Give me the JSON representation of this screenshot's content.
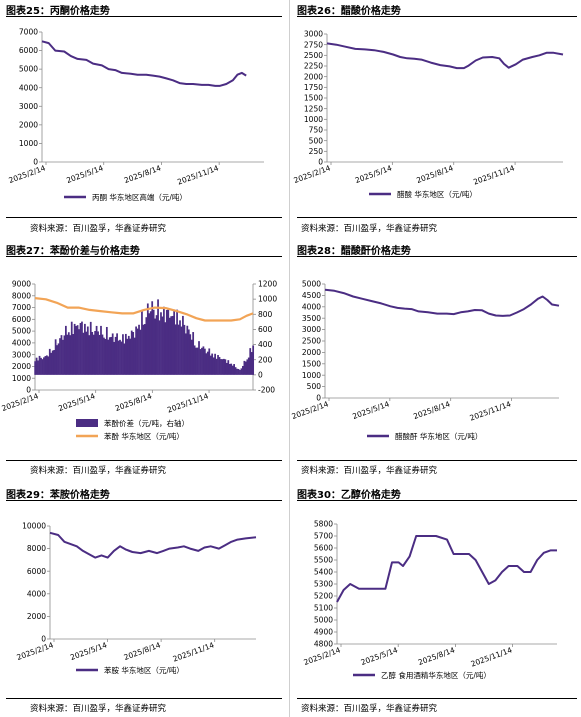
{
  "colors": {
    "purple": "#4b2d83",
    "orange": "#f2a456",
    "axis": "#8c8c8c"
  },
  "source_text": "资料来源：百川盈孚，华鑫证券研究",
  "chart_data": [
    {
      "id": "c25",
      "type": "line",
      "title": "图表25：丙酮价格走势",
      "ylim": [
        0,
        7000
      ],
      "yticks": [
        0,
        1000,
        2000,
        3000,
        4000,
        5000,
        6000,
        7000
      ],
      "xlabels": [
        "2025/2/14",
        "2025/5/14",
        "2025/8/14",
        "2025/11/14"
      ],
      "series": [
        {
          "name": "丙酮  华东地区高端（元/吨）",
          "color": "#4b2d83",
          "points": [
            [
              0,
              6500
            ],
            [
              0.03,
              6400
            ],
            [
              0.06,
              6000
            ],
            [
              0.1,
              5950
            ],
            [
              0.13,
              5700
            ],
            [
              0.16,
              5550
            ],
            [
              0.2,
              5500
            ],
            [
              0.23,
              5300
            ],
            [
              0.27,
              5200
            ],
            [
              0.3,
              5000
            ],
            [
              0.33,
              4950
            ],
            [
              0.36,
              4800
            ],
            [
              0.4,
              4750
            ],
            [
              0.43,
              4700
            ],
            [
              0.47,
              4700
            ],
            [
              0.5,
              4650
            ],
            [
              0.53,
              4600
            ],
            [
              0.56,
              4500
            ],
            [
              0.59,
              4400
            ],
            [
              0.62,
              4250
            ],
            [
              0.65,
              4200
            ],
            [
              0.68,
              4200
            ],
            [
              0.72,
              4150
            ],
            [
              0.75,
              4150
            ],
            [
              0.78,
              4100
            ],
            [
              0.8,
              4100
            ],
            [
              0.83,
              4200
            ],
            [
              0.86,
              4400
            ],
            [
              0.88,
              4700
            ],
            [
              0.9,
              4800
            ],
            [
              0.92,
              4650
            ]
          ]
        }
      ]
    },
    {
      "id": "c26",
      "type": "line",
      "title": "图表26：醋酸价格走势",
      "ylim": [
        0,
        3000
      ],
      "yticks": [
        0,
        250,
        500,
        750,
        1000,
        1250,
        1500,
        1750,
        2000,
        2250,
        2500,
        2750,
        3000
      ],
      "xlabels": [
        "2025/2/14",
        "2025/5/14",
        "2025/8/14",
        "2025/11/14"
      ],
      "series": [
        {
          "name": "醋酸  华东地区（元/吨）",
          "color": "#4b2d83",
          "points": [
            [
              0,
              2780
            ],
            [
              0.04,
              2750
            ],
            [
              0.08,
              2700
            ],
            [
              0.12,
              2650
            ],
            [
              0.16,
              2640
            ],
            [
              0.2,
              2620
            ],
            [
              0.24,
              2580
            ],
            [
              0.28,
              2520
            ],
            [
              0.31,
              2460
            ],
            [
              0.34,
              2430
            ],
            [
              0.37,
              2420
            ],
            [
              0.4,
              2400
            ],
            [
              0.44,
              2330
            ],
            [
              0.48,
              2270
            ],
            [
              0.52,
              2240
            ],
            [
              0.55,
              2200
            ],
            [
              0.58,
              2200
            ],
            [
              0.6,
              2260
            ],
            [
              0.63,
              2380
            ],
            [
              0.66,
              2450
            ],
            [
              0.7,
              2460
            ],
            [
              0.73,
              2430
            ],
            [
              0.75,
              2300
            ],
            [
              0.77,
              2210
            ],
            [
              0.8,
              2290
            ],
            [
              0.83,
              2400
            ],
            [
              0.87,
              2460
            ],
            [
              0.9,
              2500
            ],
            [
              0.93,
              2560
            ],
            [
              0.96,
              2560
            ],
            [
              1.0,
              2520
            ]
          ]
        }
      ]
    },
    {
      "id": "c27",
      "type": "bar",
      "title": "图表27：苯酚价差与价格走势",
      "ylim": [
        0,
        9000
      ],
      "yticks": [
        0,
        1000,
        2000,
        3000,
        4000,
        5000,
        6000,
        7000,
        8000,
        9000
      ],
      "ylim_right": [
        -200,
        1200
      ],
      "yticks_right": [
        -200,
        0,
        200,
        400,
        600,
        800,
        1000,
        1200
      ],
      "xlabels": [
        "2025/2/14",
        "2025/5/14",
        "2025/8/14",
        "2025/11/14"
      ],
      "series": [
        {
          "name": "苯酚价差（元/吨，右轴）",
          "color": "#4b2d83",
          "axis": "right",
          "points": [
            [
              0,
              250
            ],
            [
              0.05,
              280
            ],
            [
              0.1,
              500
            ],
            [
              0.15,
              700
            ],
            [
              0.2,
              780
            ],
            [
              0.25,
              720
            ],
            [
              0.3,
              680
            ],
            [
              0.35,
              600
            ],
            [
              0.4,
              560
            ],
            [
              0.45,
              640
            ],
            [
              0.5,
              900
            ],
            [
              0.53,
              1050
            ],
            [
              0.56,
              1010
            ],
            [
              0.6,
              960
            ],
            [
              0.65,
              920
            ],
            [
              0.7,
              720
            ],
            [
              0.74,
              480
            ],
            [
              0.78,
              400
            ],
            [
              0.82,
              310
            ],
            [
              0.86,
              250
            ],
            [
              0.9,
              180
            ],
            [
              0.94,
              70
            ],
            [
              0.97,
              250
            ],
            [
              1.0,
              450
            ]
          ]
        },
        {
          "name": "苯酚  华东地区（元/吨）",
          "color": "#f2a456",
          "axis": "left",
          "points": [
            [
              0,
              7800
            ],
            [
              0.05,
              7700
            ],
            [
              0.1,
              7400
            ],
            [
              0.15,
              7000
            ],
            [
              0.2,
              7000
            ],
            [
              0.25,
              6800
            ],
            [
              0.3,
              6700
            ],
            [
              0.35,
              6600
            ],
            [
              0.4,
              6500
            ],
            [
              0.45,
              6500
            ],
            [
              0.5,
              6800
            ],
            [
              0.55,
              7000
            ],
            [
              0.6,
              6950
            ],
            [
              0.65,
              6700
            ],
            [
              0.7,
              6400
            ],
            [
              0.74,
              6100
            ],
            [
              0.78,
              5900
            ],
            [
              0.82,
              5900
            ],
            [
              0.86,
              5900
            ],
            [
              0.9,
              5900
            ],
            [
              0.94,
              6000
            ],
            [
              0.97,
              6300
            ],
            [
              1.0,
              6500
            ]
          ]
        }
      ]
    },
    {
      "id": "c28",
      "type": "line",
      "title": "图表28：醋酸酐价格走势",
      "ylim": [
        0,
        5000
      ],
      "yticks": [
        0,
        500,
        1000,
        1500,
        2000,
        2500,
        3000,
        3500,
        4000,
        4500,
        5000
      ],
      "xlabels": [
        "2025/2/14",
        "2025/5/14",
        "2025/8/14",
        "2025/11/14"
      ],
      "series": [
        {
          "name": "醋酸酐  华东地区（元/吨）",
          "color": "#4b2d83",
          "points": [
            [
              0,
              4750
            ],
            [
              0.04,
              4700
            ],
            [
              0.08,
              4600
            ],
            [
              0.12,
              4450
            ],
            [
              0.16,
              4350
            ],
            [
              0.2,
              4250
            ],
            [
              0.24,
              4150
            ],
            [
              0.28,
              4020
            ],
            [
              0.31,
              3950
            ],
            [
              0.34,
              3920
            ],
            [
              0.37,
              3900
            ],
            [
              0.4,
              3800
            ],
            [
              0.44,
              3760
            ],
            [
              0.48,
              3700
            ],
            [
              0.52,
              3700
            ],
            [
              0.55,
              3680
            ],
            [
              0.58,
              3760
            ],
            [
              0.61,
              3800
            ],
            [
              0.64,
              3860
            ],
            [
              0.67,
              3850
            ],
            [
              0.7,
              3700
            ],
            [
              0.73,
              3620
            ],
            [
              0.76,
              3600
            ],
            [
              0.79,
              3620
            ],
            [
              0.82,
              3750
            ],
            [
              0.85,
              3900
            ],
            [
              0.88,
              4100
            ],
            [
              0.91,
              4350
            ],
            [
              0.93,
              4450
            ],
            [
              0.95,
              4300
            ],
            [
              0.97,
              4100
            ],
            [
              1.0,
              4050
            ]
          ]
        }
      ]
    },
    {
      "id": "c29",
      "type": "line",
      "title": "图表29：苯胺价格走势",
      "ylim": [
        0,
        10000
      ],
      "yticks": [
        0,
        2000,
        4000,
        6000,
        8000,
        10000
      ],
      "xlabels": [
        "2025/2/14",
        "2025/5/14",
        "2025/8/14",
        "2025/11/14"
      ],
      "series": [
        {
          "name": "苯胺  华东地区（元/吨）",
          "color": "#4b2d83",
          "points": [
            [
              0,
              9400
            ],
            [
              0.04,
              9200
            ],
            [
              0.07,
              8600
            ],
            [
              0.1,
              8400
            ],
            [
              0.13,
              8200
            ],
            [
              0.16,
              7800
            ],
            [
              0.19,
              7500
            ],
            [
              0.22,
              7200
            ],
            [
              0.25,
              7400
            ],
            [
              0.28,
              7200
            ],
            [
              0.31,
              7800
            ],
            [
              0.34,
              8200
            ],
            [
              0.37,
              7900
            ],
            [
              0.4,
              7700
            ],
            [
              0.44,
              7600
            ],
            [
              0.48,
              7800
            ],
            [
              0.52,
              7600
            ],
            [
              0.55,
              7800
            ],
            [
              0.58,
              8000
            ],
            [
              0.62,
              8100
            ],
            [
              0.65,
              8200
            ],
            [
              0.68,
              8000
            ],
            [
              0.72,
              7800
            ],
            [
              0.75,
              8100
            ],
            [
              0.78,
              8200
            ],
            [
              0.82,
              8000
            ],
            [
              0.85,
              8300
            ],
            [
              0.88,
              8600
            ],
            [
              0.91,
              8800
            ],
            [
              0.95,
              8900
            ],
            [
              1.0,
              9000
            ]
          ]
        }
      ]
    },
    {
      "id": "c30",
      "type": "line",
      "title": "图表30：乙醇价格走势",
      "ylim": [
        4800,
        5800
      ],
      "yticks": [
        4800,
        4900,
        5000,
        5100,
        5200,
        5300,
        5400,
        5500,
        5600,
        5700,
        5800
      ],
      "xlabels": [
        "2025/2/14",
        "2025/5/14",
        "2025/8/14",
        "2025/11/14"
      ],
      "series": [
        {
          "name": "乙醇  食用酒精华东地区（元/吨）",
          "color": "#4b2d83",
          "points": [
            [
              0,
              5150
            ],
            [
              0.03,
              5250
            ],
            [
              0.06,
              5300
            ],
            [
              0.1,
              5260
            ],
            [
              0.14,
              5260
            ],
            [
              0.18,
              5260
            ],
            [
              0.22,
              5260
            ],
            [
              0.25,
              5480
            ],
            [
              0.28,
              5480
            ],
            [
              0.3,
              5450
            ],
            [
              0.33,
              5530
            ],
            [
              0.36,
              5700
            ],
            [
              0.39,
              5700
            ],
            [
              0.42,
              5700
            ],
            [
              0.45,
              5700
            ],
            [
              0.5,
              5670
            ],
            [
              0.53,
              5550
            ],
            [
              0.56,
              5550
            ],
            [
              0.6,
              5550
            ],
            [
              0.63,
              5500
            ],
            [
              0.66,
              5400
            ],
            [
              0.69,
              5300
            ],
            [
              0.72,
              5330
            ],
            [
              0.75,
              5400
            ],
            [
              0.78,
              5450
            ],
            [
              0.82,
              5450
            ],
            [
              0.85,
              5400
            ],
            [
              0.88,
              5400
            ],
            [
              0.91,
              5500
            ],
            [
              0.94,
              5560
            ],
            [
              0.97,
              5580
            ],
            [
              1.0,
              5580
            ]
          ]
        }
      ]
    }
  ]
}
